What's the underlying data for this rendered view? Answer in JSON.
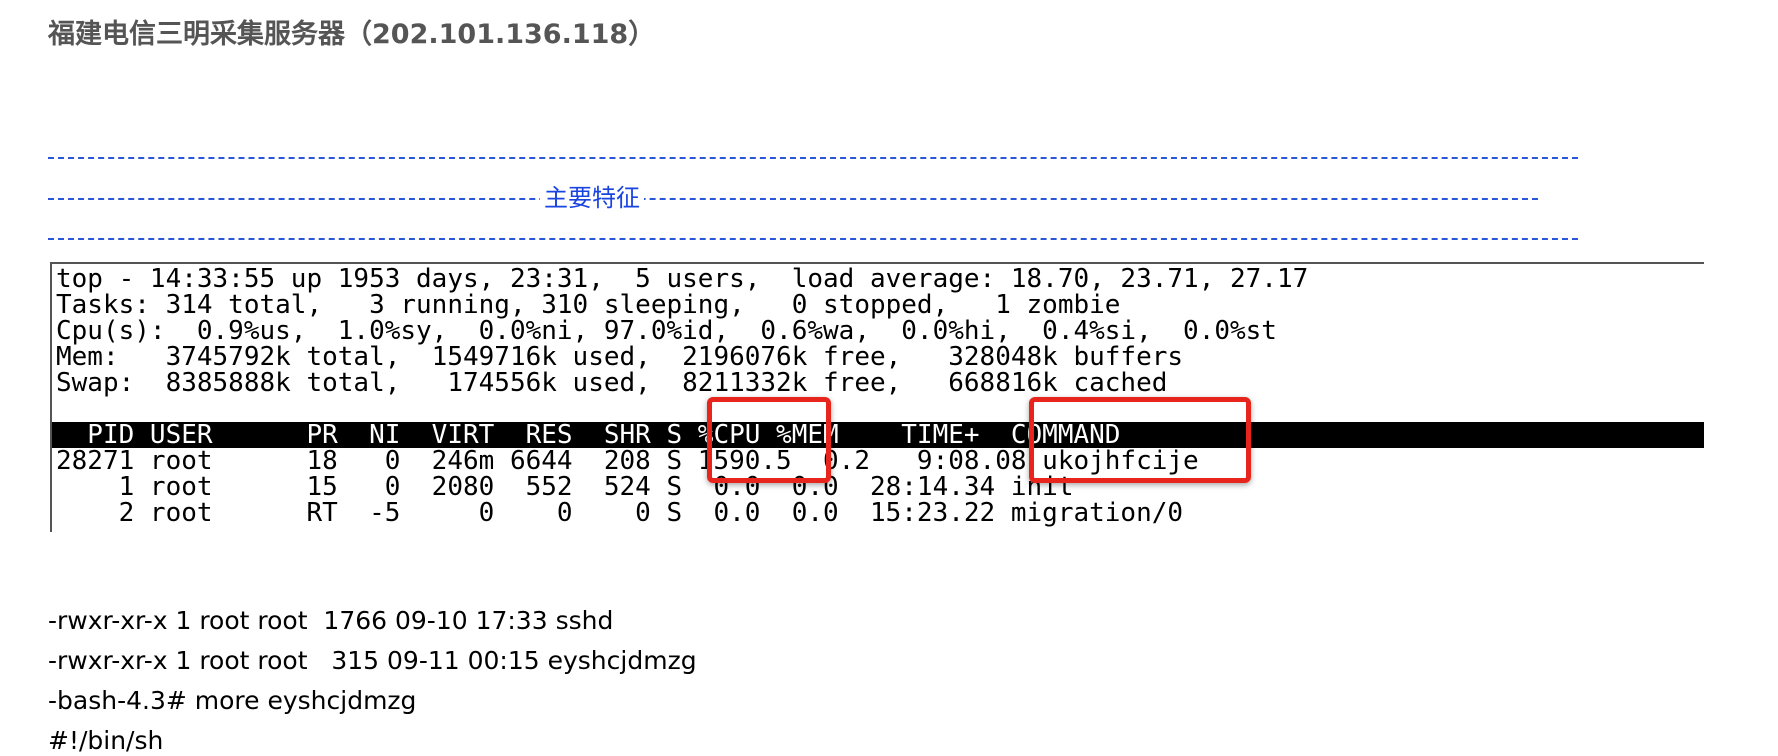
{
  "header": {
    "title": "福建电信三明采集服务器（202.101.136.118）"
  },
  "section": {
    "label": "主要特征"
  },
  "terminal": {
    "summary": [
      "top - 14:33:55 up 1953 days, 23:31,  5 users,  load average: 18.70, 23.71, 27.17",
      "Tasks: 314 total,   3 running, 310 sleeping,   0 stopped,   1 zombie",
      "Cpu(s):  0.9%us,  1.0%sy,  0.0%ni, 97.0%id,  0.6%wa,  0.0%hi,  0.4%si,  0.0%st",
      "Mem:   3745792k total,  1549716k used,  2196076k free,   328048k buffers",
      "Swap:  8385888k total,   174556k used,  8211332k free,   668816k cached"
    ],
    "table_header": "  PID USER      PR  NI  VIRT  RES  SHR S %CPU %MEM    TIME+  COMMAND",
    "rows": [
      "28271 root      18   0  246m 6644  208 S 1590.5  0.2   9:08.08 ukojhfcije",
      "    1 root      15   0  2080  552  524 S  0.0  0.0  28:14.34 init",
      "    2 root      RT  -5     0    0    0 S  0.0  0.0  15:23.22 migration/0"
    ]
  },
  "output": [
    "-rwxr-xr-x 1 root root  1766 09-10 17:33 sshd",
    "-rwxr-xr-x 1 root root   315 09-11 00:15 eyshcjdmzg",
    "-bash-4.3# more eyshcjdmzg",
    "#!/bin/sh"
  ]
}
